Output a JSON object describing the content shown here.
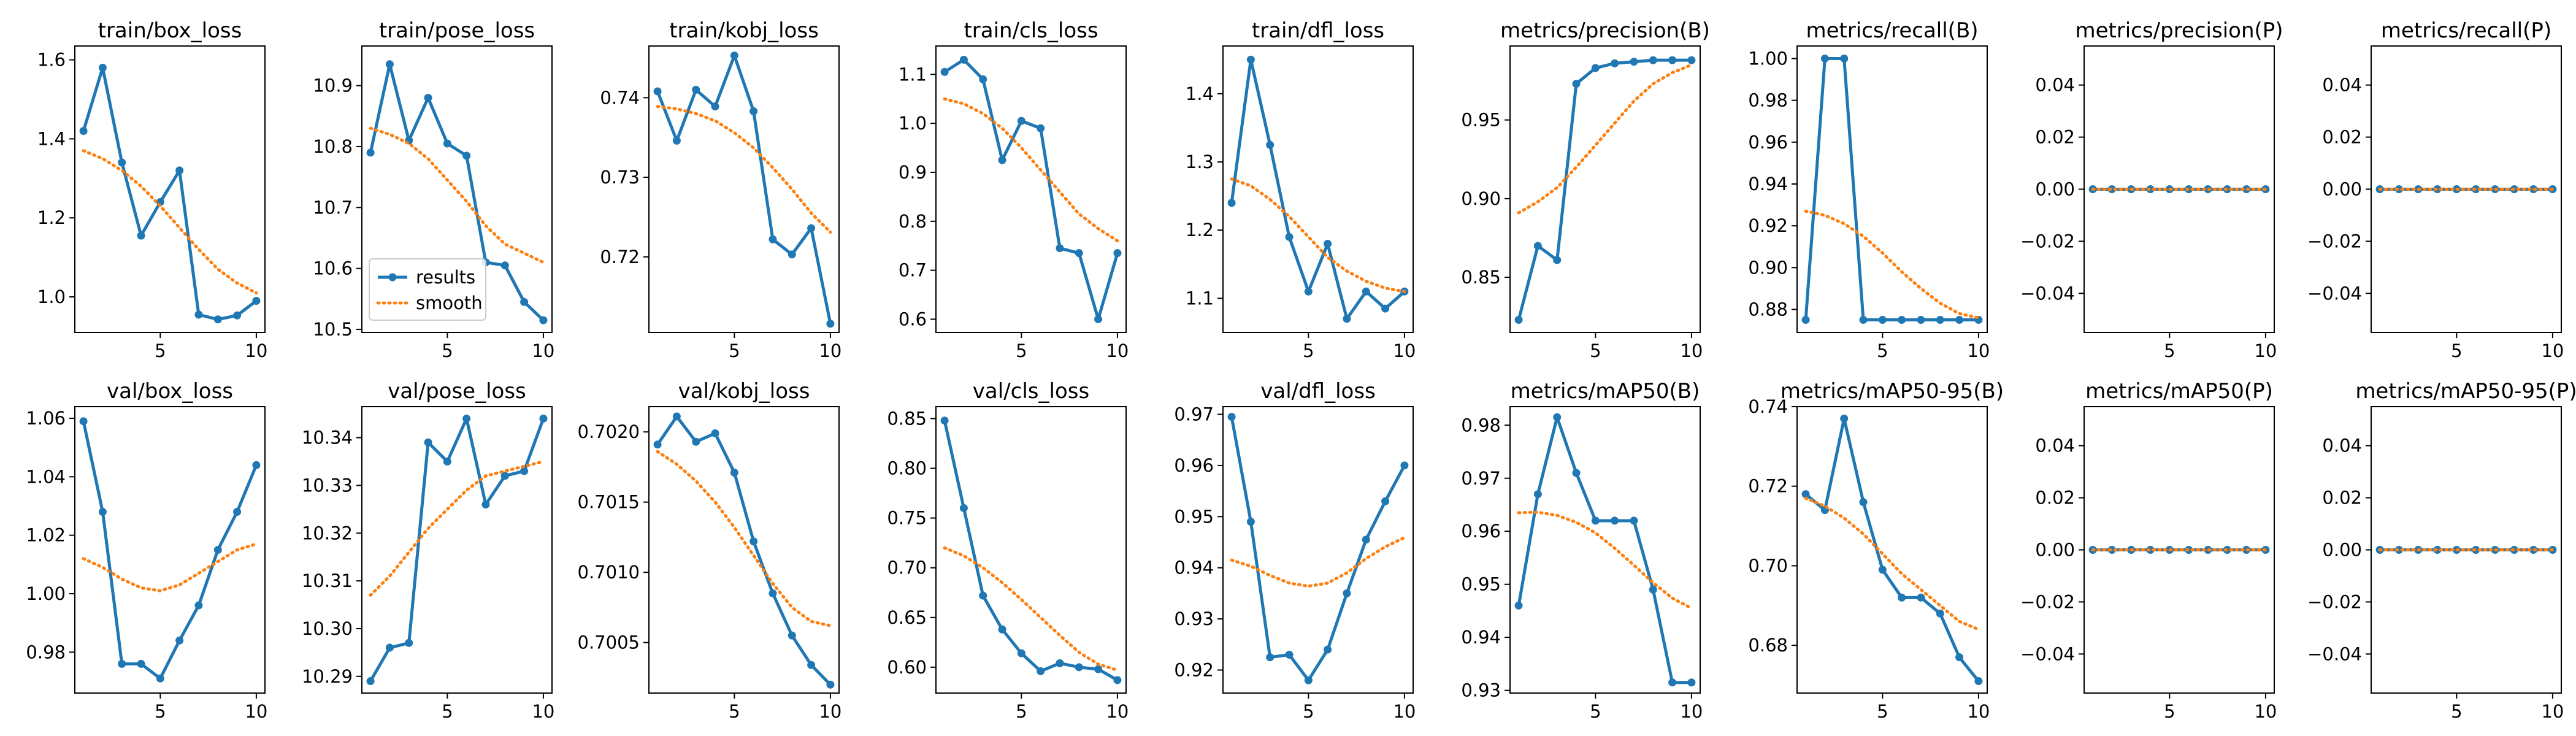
{
  "colors": {
    "results": "#1f77b4",
    "smooth": "#ff7f0e",
    "axis": "#000000"
  },
  "legend": {
    "entries": [
      "results",
      "smooth"
    ],
    "panel": "train/pose_loss",
    "placement": "lower-left"
  },
  "chart_data": [
    {
      "type": "line",
      "title": "train/box_loss",
      "x": [
        1,
        2,
        3,
        4,
        5,
        6,
        7,
        8,
        9,
        10
      ],
      "series": [
        {
          "name": "results",
          "values": [
            1.42,
            1.58,
            1.34,
            1.155,
            1.24,
            1.32,
            0.955,
            0.943,
            0.953,
            0.99
          ]
        },
        {
          "name": "smooth",
          "values": [
            1.37,
            1.35,
            1.32,
            1.28,
            1.23,
            1.175,
            1.12,
            1.07,
            1.035,
            1.01
          ]
        }
      ],
      "ylim": [
        0.91,
        1.635
      ],
      "yticks": [
        1.0,
        1.2,
        1.4,
        1.6
      ],
      "ytick_labels": [
        "1.0",
        "1.2",
        "1.4",
        "1.6"
      ],
      "xticks": [
        5,
        10
      ]
    },
    {
      "type": "line",
      "title": "train/pose_loss",
      "x": [
        1,
        2,
        3,
        4,
        5,
        6,
        7,
        8,
        9,
        10
      ],
      "series": [
        {
          "name": "results",
          "values": [
            10.79,
            10.935,
            10.81,
            10.88,
            10.805,
            10.785,
            10.61,
            10.605,
            10.545,
            10.515
          ]
        },
        {
          "name": "smooth",
          "values": [
            10.83,
            10.82,
            10.805,
            10.78,
            10.745,
            10.71,
            10.67,
            10.64,
            10.625,
            10.61
          ]
        }
      ],
      "ylim": [
        10.495,
        10.965
      ],
      "yticks": [
        10.5,
        10.6,
        10.7,
        10.8,
        10.9
      ],
      "ytick_labels": [
        "10.5",
        "10.6",
        "10.7",
        "10.8",
        "10.9"
      ],
      "xticks": [
        5,
        10
      ]
    },
    {
      "type": "line",
      "title": "train/kobj_loss",
      "x": [
        1,
        2,
        3,
        4,
        5,
        6,
        7,
        8,
        9,
        10
      ],
      "series": [
        {
          "name": "results",
          "values": [
            0.7408,
            0.7346,
            0.741,
            0.7389,
            0.7453,
            0.7383,
            0.7222,
            0.7203,
            0.7236,
            0.7116
          ]
        },
        {
          "name": "smooth",
          "values": [
            0.7389,
            0.7386,
            0.738,
            0.7371,
            0.7356,
            0.7337,
            0.7312,
            0.7285,
            0.7255,
            0.7231
          ]
        }
      ],
      "ylim": [
        0.7105,
        0.7465
      ],
      "yticks": [
        0.72,
        0.73,
        0.74
      ],
      "ytick_labels": [
        "0.72",
        "0.73",
        "0.74"
      ],
      "xticks": [
        5,
        10
      ]
    },
    {
      "type": "line",
      "title": "train/cls_loss",
      "x": [
        1,
        2,
        3,
        4,
        5,
        6,
        7,
        8,
        9,
        10
      ],
      "series": [
        {
          "name": "results",
          "values": [
            1.105,
            1.13,
            1.09,
            0.925,
            1.005,
            0.99,
            0.745,
            0.735,
            0.6,
            0.735
          ]
        },
        {
          "name": "smooth",
          "values": [
            1.05,
            1.04,
            1.02,
            0.99,
            0.95,
            0.905,
            0.86,
            0.815,
            0.785,
            0.76
          ]
        }
      ],
      "ylim": [
        0.573,
        1.158
      ],
      "yticks": [
        0.6,
        0.7,
        0.8,
        0.9,
        1.0,
        1.1
      ],
      "ytick_labels": [
        "0.6",
        "0.7",
        "0.8",
        "0.9",
        "1.0",
        "1.1"
      ],
      "xticks": [
        5,
        10
      ]
    },
    {
      "type": "line",
      "title": "train/dfl_loss",
      "x": [
        1,
        2,
        3,
        4,
        5,
        6,
        7,
        8,
        9,
        10
      ],
      "series": [
        {
          "name": "results",
          "values": [
            1.24,
            1.45,
            1.325,
            1.19,
            1.11,
            1.18,
            1.07,
            1.11,
            1.085,
            1.11
          ]
        },
        {
          "name": "smooth",
          "values": [
            1.275,
            1.265,
            1.245,
            1.22,
            1.19,
            1.16,
            1.14,
            1.125,
            1.115,
            1.11
          ]
        }
      ],
      "ylim": [
        1.05,
        1.47
      ],
      "yticks": [
        1.1,
        1.2,
        1.3,
        1.4
      ],
      "ytick_labels": [
        "1.1",
        "1.2",
        "1.3",
        "1.4"
      ],
      "xticks": [
        5,
        10
      ]
    },
    {
      "type": "line",
      "title": "metrics/precision(B)",
      "x": [
        1,
        2,
        3,
        4,
        5,
        6,
        7,
        8,
        9,
        10
      ],
      "series": [
        {
          "name": "results",
          "values": [
            0.823,
            0.87,
            0.861,
            0.973,
            0.983,
            0.986,
            0.987,
            0.988,
            0.988,
            0.988
          ]
        },
        {
          "name": "smooth",
          "values": [
            0.891,
            0.898,
            0.907,
            0.92,
            0.934,
            0.948,
            0.962,
            0.973,
            0.98,
            0.985
          ]
        }
      ],
      "ylim": [
        0.815,
        0.997
      ],
      "yticks": [
        0.85,
        0.9,
        0.95
      ],
      "ytick_labels": [
        "0.85",
        "0.90",
        "0.95"
      ],
      "xticks": [
        5,
        10
      ]
    },
    {
      "type": "line",
      "title": "metrics/recall(B)",
      "x": [
        1,
        2,
        3,
        4,
        5,
        6,
        7,
        8,
        9,
        10
      ],
      "series": [
        {
          "name": "results",
          "values": [
            0.875,
            1.0,
            1.0,
            0.875,
            0.875,
            0.875,
            0.875,
            0.875,
            0.875,
            0.875
          ]
        },
        {
          "name": "smooth",
          "values": [
            0.927,
            0.925,
            0.921,
            0.915,
            0.907,
            0.898,
            0.89,
            0.883,
            0.878,
            0.876
          ]
        }
      ],
      "ylim": [
        0.869,
        1.006
      ],
      "yticks": [
        0.88,
        0.9,
        0.92,
        0.94,
        0.96,
        0.98,
        1.0
      ],
      "ytick_labels": [
        "0.88",
        "0.90",
        "0.92",
        "0.94",
        "0.96",
        "0.98",
        "1.00"
      ],
      "xticks": [
        5,
        10
      ]
    },
    {
      "type": "line",
      "title": "metrics/precision(P)",
      "x": [
        1,
        2,
        3,
        4,
        5,
        6,
        7,
        8,
        9,
        10
      ],
      "series": [
        {
          "name": "results",
          "values": [
            0,
            0,
            0,
            0,
            0,
            0,
            0,
            0,
            0,
            0
          ]
        },
        {
          "name": "smooth",
          "values": [
            0,
            0,
            0,
            0,
            0,
            0,
            0,
            0,
            0,
            0
          ]
        }
      ],
      "ylim": [
        -0.055,
        0.055
      ],
      "yticks": [
        -0.04,
        -0.02,
        0.0,
        0.02,
        0.04
      ],
      "ytick_labels": [
        "−0.04",
        "−0.02",
        "0.00",
        "0.02",
        "0.04"
      ],
      "xticks": [
        5,
        10
      ]
    },
    {
      "type": "line",
      "title": "metrics/recall(P)",
      "x": [
        1,
        2,
        3,
        4,
        5,
        6,
        7,
        8,
        9,
        10
      ],
      "series": [
        {
          "name": "results",
          "values": [
            0,
            0,
            0,
            0,
            0,
            0,
            0,
            0,
            0,
            0
          ]
        },
        {
          "name": "smooth",
          "values": [
            0,
            0,
            0,
            0,
            0,
            0,
            0,
            0,
            0,
            0
          ]
        }
      ],
      "ylim": [
        -0.055,
        0.055
      ],
      "yticks": [
        -0.04,
        -0.02,
        0.0,
        0.02,
        0.04
      ],
      "ytick_labels": [
        "−0.04",
        "−0.02",
        "0.00",
        "0.02",
        "0.04"
      ],
      "xticks": [
        5,
        10
      ]
    },
    {
      "type": "line",
      "title": "val/box_loss",
      "x": [
        1,
        2,
        3,
        4,
        5,
        6,
        7,
        8,
        9,
        10
      ],
      "series": [
        {
          "name": "results",
          "values": [
            1.059,
            1.028,
            0.976,
            0.976,
            0.971,
            0.984,
            0.996,
            1.015,
            1.028,
            1.044
          ]
        },
        {
          "name": "smooth",
          "values": [
            1.012,
            1.009,
            1.005,
            1.002,
            1.001,
            1.003,
            1.007,
            1.011,
            1.015,
            1.017
          ]
        }
      ],
      "ylim": [
        0.966,
        1.064
      ],
      "yticks": [
        0.98,
        1.0,
        1.02,
        1.04,
        1.06
      ],
      "ytick_labels": [
        "0.98",
        "1.00",
        "1.02",
        "1.04",
        "1.06"
      ],
      "xticks": [
        5,
        10
      ]
    },
    {
      "type": "line",
      "title": "val/pose_loss",
      "x": [
        1,
        2,
        3,
        4,
        5,
        6,
        7,
        8,
        9,
        10
      ],
      "series": [
        {
          "name": "results",
          "values": [
            10.289,
            10.296,
            10.297,
            10.339,
            10.335,
            10.344,
            10.326,
            10.332,
            10.333,
            10.344
          ]
        },
        {
          "name": "smooth",
          "values": [
            10.307,
            10.311,
            10.316,
            10.321,
            10.325,
            10.329,
            10.332,
            10.333,
            10.334,
            10.335
          ]
        }
      ],
      "ylim": [
        10.2865,
        10.3465
      ],
      "yticks": [
        10.29,
        10.3,
        10.31,
        10.32,
        10.33,
        10.34
      ],
      "ytick_labels": [
        "10.29",
        "10.30",
        "10.31",
        "10.32",
        "10.33",
        "10.34"
      ],
      "xticks": [
        5,
        10
      ]
    },
    {
      "type": "line",
      "title": "val/kobj_loss",
      "x": [
        1,
        2,
        3,
        4,
        5,
        6,
        7,
        8,
        9,
        10
      ],
      "series": [
        {
          "name": "results",
          "values": [
            0.70191,
            0.70211,
            0.70193,
            0.70199,
            0.70171,
            0.70122,
            0.70085,
            0.70055,
            0.70034,
            0.7002
          ]
        },
        {
          "name": "smooth",
          "values": [
            0.70186,
            0.70177,
            0.70165,
            0.7015,
            0.70132,
            0.70112,
            0.70092,
            0.70075,
            0.70065,
            0.70062
          ]
        }
      ],
      "ylim": [
        0.70014,
        0.70218
      ],
      "yticks": [
        0.7005,
        0.701,
        0.7015,
        0.702
      ],
      "ytick_labels": [
        "0.7005",
        "0.7010",
        "0.7015",
        "0.7020"
      ],
      "xticks": [
        5,
        10
      ]
    },
    {
      "type": "line",
      "title": "val/cls_loss",
      "x": [
        1,
        2,
        3,
        4,
        5,
        6,
        7,
        8,
        9,
        10
      ],
      "series": [
        {
          "name": "results",
          "values": [
            0.848,
            0.76,
            0.672,
            0.638,
            0.614,
            0.596,
            0.604,
            0.6,
            0.598,
            0.587
          ]
        },
        {
          "name": "smooth",
          "values": [
            0.72,
            0.712,
            0.7,
            0.685,
            0.668,
            0.65,
            0.632,
            0.615,
            0.603,
            0.597
          ]
        }
      ],
      "ylim": [
        0.574,
        0.862
      ],
      "yticks": [
        0.6,
        0.65,
        0.7,
        0.75,
        0.8,
        0.85
      ],
      "ytick_labels": [
        "0.60",
        "0.65",
        "0.70",
        "0.75",
        "0.80",
        "0.85"
      ],
      "xticks": [
        5,
        10
      ]
    },
    {
      "type": "line",
      "title": "val/dfl_loss",
      "x": [
        1,
        2,
        3,
        4,
        5,
        6,
        7,
        8,
        9,
        10
      ],
      "series": [
        {
          "name": "results",
          "values": [
            0.9695,
            0.949,
            0.9225,
            0.923,
            0.918,
            0.924,
            0.935,
            0.9455,
            0.953,
            0.96
          ]
        },
        {
          "name": "smooth",
          "values": [
            0.9415,
            0.9403,
            0.9385,
            0.937,
            0.9364,
            0.937,
            0.939,
            0.9418,
            0.9441,
            0.9459
          ]
        }
      ],
      "ylim": [
        0.9155,
        0.9715
      ],
      "yticks": [
        0.92,
        0.93,
        0.94,
        0.95,
        0.96,
        0.97
      ],
      "ytick_labels": [
        "0.92",
        "0.93",
        "0.94",
        "0.95",
        "0.96",
        "0.97"
      ],
      "xticks": [
        5,
        10
      ]
    },
    {
      "type": "line",
      "title": "metrics/mAP50(B)",
      "x": [
        1,
        2,
        3,
        4,
        5,
        6,
        7,
        8,
        9,
        10
      ],
      "series": [
        {
          "name": "results",
          "values": [
            0.946,
            0.967,
            0.9815,
            0.971,
            0.962,
            0.962,
            0.962,
            0.949,
            0.9315,
            0.9315
          ]
        },
        {
          "name": "smooth",
          "values": [
            0.9635,
            0.9636,
            0.963,
            0.9617,
            0.9597,
            0.9568,
            0.9536,
            0.9503,
            0.9474,
            0.9455
          ]
        }
      ],
      "ylim": [
        0.9295,
        0.9835
      ],
      "yticks": [
        0.93,
        0.94,
        0.95,
        0.96,
        0.97,
        0.98
      ],
      "ytick_labels": [
        "0.93",
        "0.94",
        "0.95",
        "0.96",
        "0.97",
        "0.98"
      ],
      "xticks": [
        5,
        10
      ]
    },
    {
      "type": "line",
      "title": "metrics/mAP50-95(B)",
      "x": [
        1,
        2,
        3,
        4,
        5,
        6,
        7,
        8,
        9,
        10
      ],
      "series": [
        {
          "name": "results",
          "values": [
            0.718,
            0.714,
            0.737,
            0.716,
            0.699,
            0.692,
            0.692,
            0.688,
            0.677,
            0.671
          ]
        },
        {
          "name": "smooth",
          "values": [
            0.717,
            0.715,
            0.712,
            0.708,
            0.703,
            0.698,
            0.694,
            0.69,
            0.686,
            0.684
          ]
        }
      ],
      "ylim": [
        0.668,
        0.74
      ],
      "yticks": [
        0.68,
        0.7,
        0.72,
        0.74
      ],
      "ytick_labels": [
        "0.68",
        "0.70",
        "0.72",
        "0.74"
      ],
      "xticks": [
        5,
        10
      ]
    },
    {
      "type": "line",
      "title": "metrics/mAP50(P)",
      "x": [
        1,
        2,
        3,
        4,
        5,
        6,
        7,
        8,
        9,
        10
      ],
      "series": [
        {
          "name": "results",
          "values": [
            0,
            0,
            0,
            0,
            0,
            0,
            0,
            0,
            0,
            0
          ]
        },
        {
          "name": "smooth",
          "values": [
            0,
            0,
            0,
            0,
            0,
            0,
            0,
            0,
            0,
            0
          ]
        }
      ],
      "ylim": [
        -0.055,
        0.055
      ],
      "yticks": [
        -0.04,
        -0.02,
        0.0,
        0.02,
        0.04
      ],
      "ytick_labels": [
        "−0.04",
        "−0.02",
        "0.00",
        "0.02",
        "0.04"
      ],
      "xticks": [
        5,
        10
      ]
    },
    {
      "type": "line",
      "title": "metrics/mAP50-95(P)",
      "x": [
        1,
        2,
        3,
        4,
        5,
        6,
        7,
        8,
        9,
        10
      ],
      "series": [
        {
          "name": "results",
          "values": [
            0,
            0,
            0,
            0,
            0,
            0,
            0,
            0,
            0,
            0
          ]
        },
        {
          "name": "smooth",
          "values": [
            0,
            0,
            0,
            0,
            0,
            0,
            0,
            0,
            0,
            0
          ]
        }
      ],
      "ylim": [
        -0.055,
        0.055
      ],
      "yticks": [
        -0.04,
        -0.02,
        0.0,
        0.02,
        0.04
      ],
      "ytick_labels": [
        "−0.04",
        "−0.02",
        "0.00",
        "0.02",
        "0.04"
      ],
      "xticks": [
        5,
        10
      ]
    }
  ]
}
